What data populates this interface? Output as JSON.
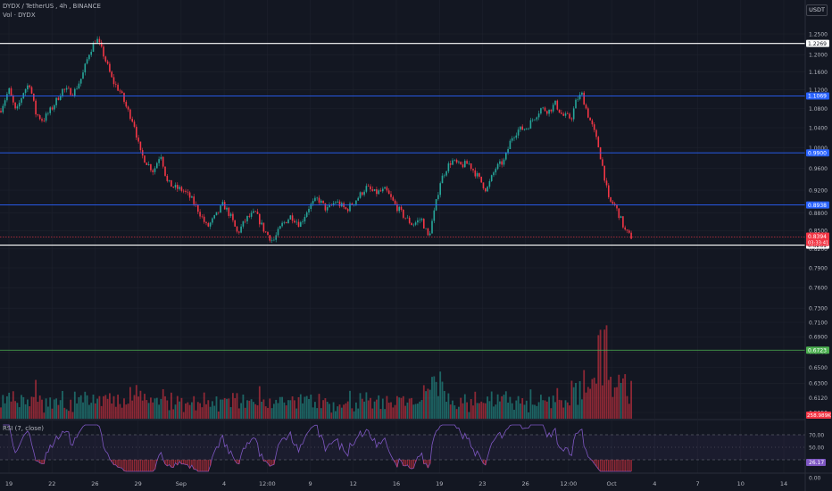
{
  "header": {
    "symbol": "DYDX",
    "quote": "TetherUS",
    "interval": "4h",
    "exchange": "BINANCE",
    "volume_label": "Vol · DYDX",
    "rsi_label": "RSI (7, close)",
    "currency_button": "USDT"
  },
  "colors": {
    "background": "#131722",
    "up": "#26a69a",
    "down": "#f23645",
    "grid": "#1e222d",
    "axis_text": "#b2b5be",
    "rsi_line": "#7e57c2",
    "level_white": "#ffffff",
    "level_blue": "#2962ff",
    "level_green": "#4caf50"
  },
  "chart_data": {
    "type": "candlestick",
    "price_axis": {
      "ticks": [
        "1.2500",
        "1.2000",
        "1.1600",
        "1.1200",
        "1.0800",
        "1.0400",
        "1.0000",
        "0.9600",
        "0.9200",
        "0.8800",
        "0.8500",
        "0.8200",
        "0.7900",
        "0.7600",
        "0.7300",
        "0.7100",
        "0.6900",
        "0.6700",
        "0.6500",
        "0.6300",
        "0.6120",
        "0.5950"
      ],
      "ylim": [
        0.59,
        1.28
      ],
      "scale": "log"
    },
    "time_axis": {
      "ticks": [
        "19",
        "22",
        "26",
        "29",
        "Sep",
        "4",
        "12:00",
        "9",
        "12",
        "16",
        "19",
        "23",
        "26",
        "12:00",
        "Oct",
        "4",
        "7",
        "10",
        "14"
      ]
    },
    "levels": [
      {
        "value": 1.2269,
        "label": "1.2269",
        "color": "#ffffff"
      },
      {
        "value": 1.1069,
        "label": "1.1069",
        "color": "#2962ff"
      },
      {
        "value": 0.99,
        "label": "0.9900",
        "color": "#2962ff"
      },
      {
        "value": 0.8938,
        "label": "0.8938",
        "color": "#2962ff"
      },
      {
        "value": 0.8261,
        "label": "0.8261",
        "color": "#ffffff"
      },
      {
        "value": 0.6723,
        "label": "0.6723",
        "color": "#4caf50"
      }
    ],
    "current_price": {
      "value": 0.8394,
      "label": "0.8394",
      "countdown": "03:33:41"
    },
    "volume_label": {
      "value": "258.989K"
    },
    "rsi": {
      "levels": [
        "70.00",
        "50.00",
        "0.00"
      ],
      "current": "26.17",
      "ylim": [
        0,
        100
      ]
    },
    "close_path": [
      [
        0,
        1.075
      ],
      [
        10,
        1.12
      ],
      [
        18,
        1.07
      ],
      [
        26,
        1.115
      ],
      [
        33,
        1.135
      ],
      [
        40,
        1.07
      ],
      [
        48,
        1.055
      ],
      [
        58,
        1.08
      ],
      [
        70,
        1.12
      ],
      [
        83,
        1.115
      ],
      [
        92,
        1.15
      ],
      [
        100,
        1.205
      ],
      [
        108,
        1.24
      ],
      [
        116,
        1.2
      ],
      [
        126,
        1.14
      ],
      [
        135,
        1.115
      ],
      [
        142,
        1.08
      ],
      [
        150,
        1.05
      ],
      [
        157,
        0.99
      ],
      [
        165,
        0.97
      ],
      [
        172,
        0.955
      ],
      [
        180,
        0.99
      ],
      [
        187,
        0.935
      ],
      [
        195,
        0.925
      ],
      [
        205,
        0.92
      ],
      [
        214,
        0.905
      ],
      [
        222,
        0.885
      ],
      [
        232,
        0.855
      ],
      [
        242,
        0.875
      ],
      [
        250,
        0.895
      ],
      [
        258,
        0.875
      ],
      [
        266,
        0.845
      ],
      [
        276,
        0.87
      ],
      [
        286,
        0.88
      ],
      [
        296,
        0.85
      ],
      [
        306,
        0.832
      ],
      [
        316,
        0.86
      ],
      [
        326,
        0.875
      ],
      [
        336,
        0.86
      ],
      [
        346,
        0.89
      ],
      [
        356,
        0.905
      ],
      [
        366,
        0.885
      ],
      [
        376,
        0.9
      ],
      [
        388,
        0.885
      ],
      [
        400,
        0.905
      ],
      [
        410,
        0.925
      ],
      [
        420,
        0.915
      ],
      [
        432,
        0.92
      ],
      [
        442,
        0.895
      ],
      [
        452,
        0.875
      ],
      [
        462,
        0.86
      ],
      [
        472,
        0.87
      ],
      [
        480,
        0.838
      ],
      [
        487,
        0.885
      ],
      [
        493,
        0.935
      ],
      [
        500,
        0.96
      ],
      [
        506,
        0.975
      ],
      [
        515,
        0.965
      ],
      [
        525,
        0.97
      ],
      [
        535,
        0.945
      ],
      [
        545,
        0.92
      ],
      [
        555,
        0.96
      ],
      [
        565,
        0.975
      ],
      [
        573,
        1.02
      ],
      [
        580,
        1.035
      ],
      [
        590,
        1.04
      ],
      [
        598,
        1.06
      ],
      [
        606,
        1.08
      ],
      [
        615,
        1.075
      ],
      [
        622,
        1.09
      ],
      [
        630,
        1.065
      ],
      [
        640,
        1.06
      ],
      [
        646,
        1.1
      ],
      [
        652,
        1.11
      ],
      [
        658,
        1.07
      ],
      [
        664,
        1.04
      ],
      [
        670,
        1.005
      ],
      [
        676,
        0.955
      ],
      [
        682,
        0.9
      ],
      [
        688,
        0.895
      ],
      [
        694,
        0.875
      ],
      [
        700,
        0.85
      ],
      [
        706,
        0.84
      ],
      [
        709,
        0.8394
      ]
    ]
  }
}
